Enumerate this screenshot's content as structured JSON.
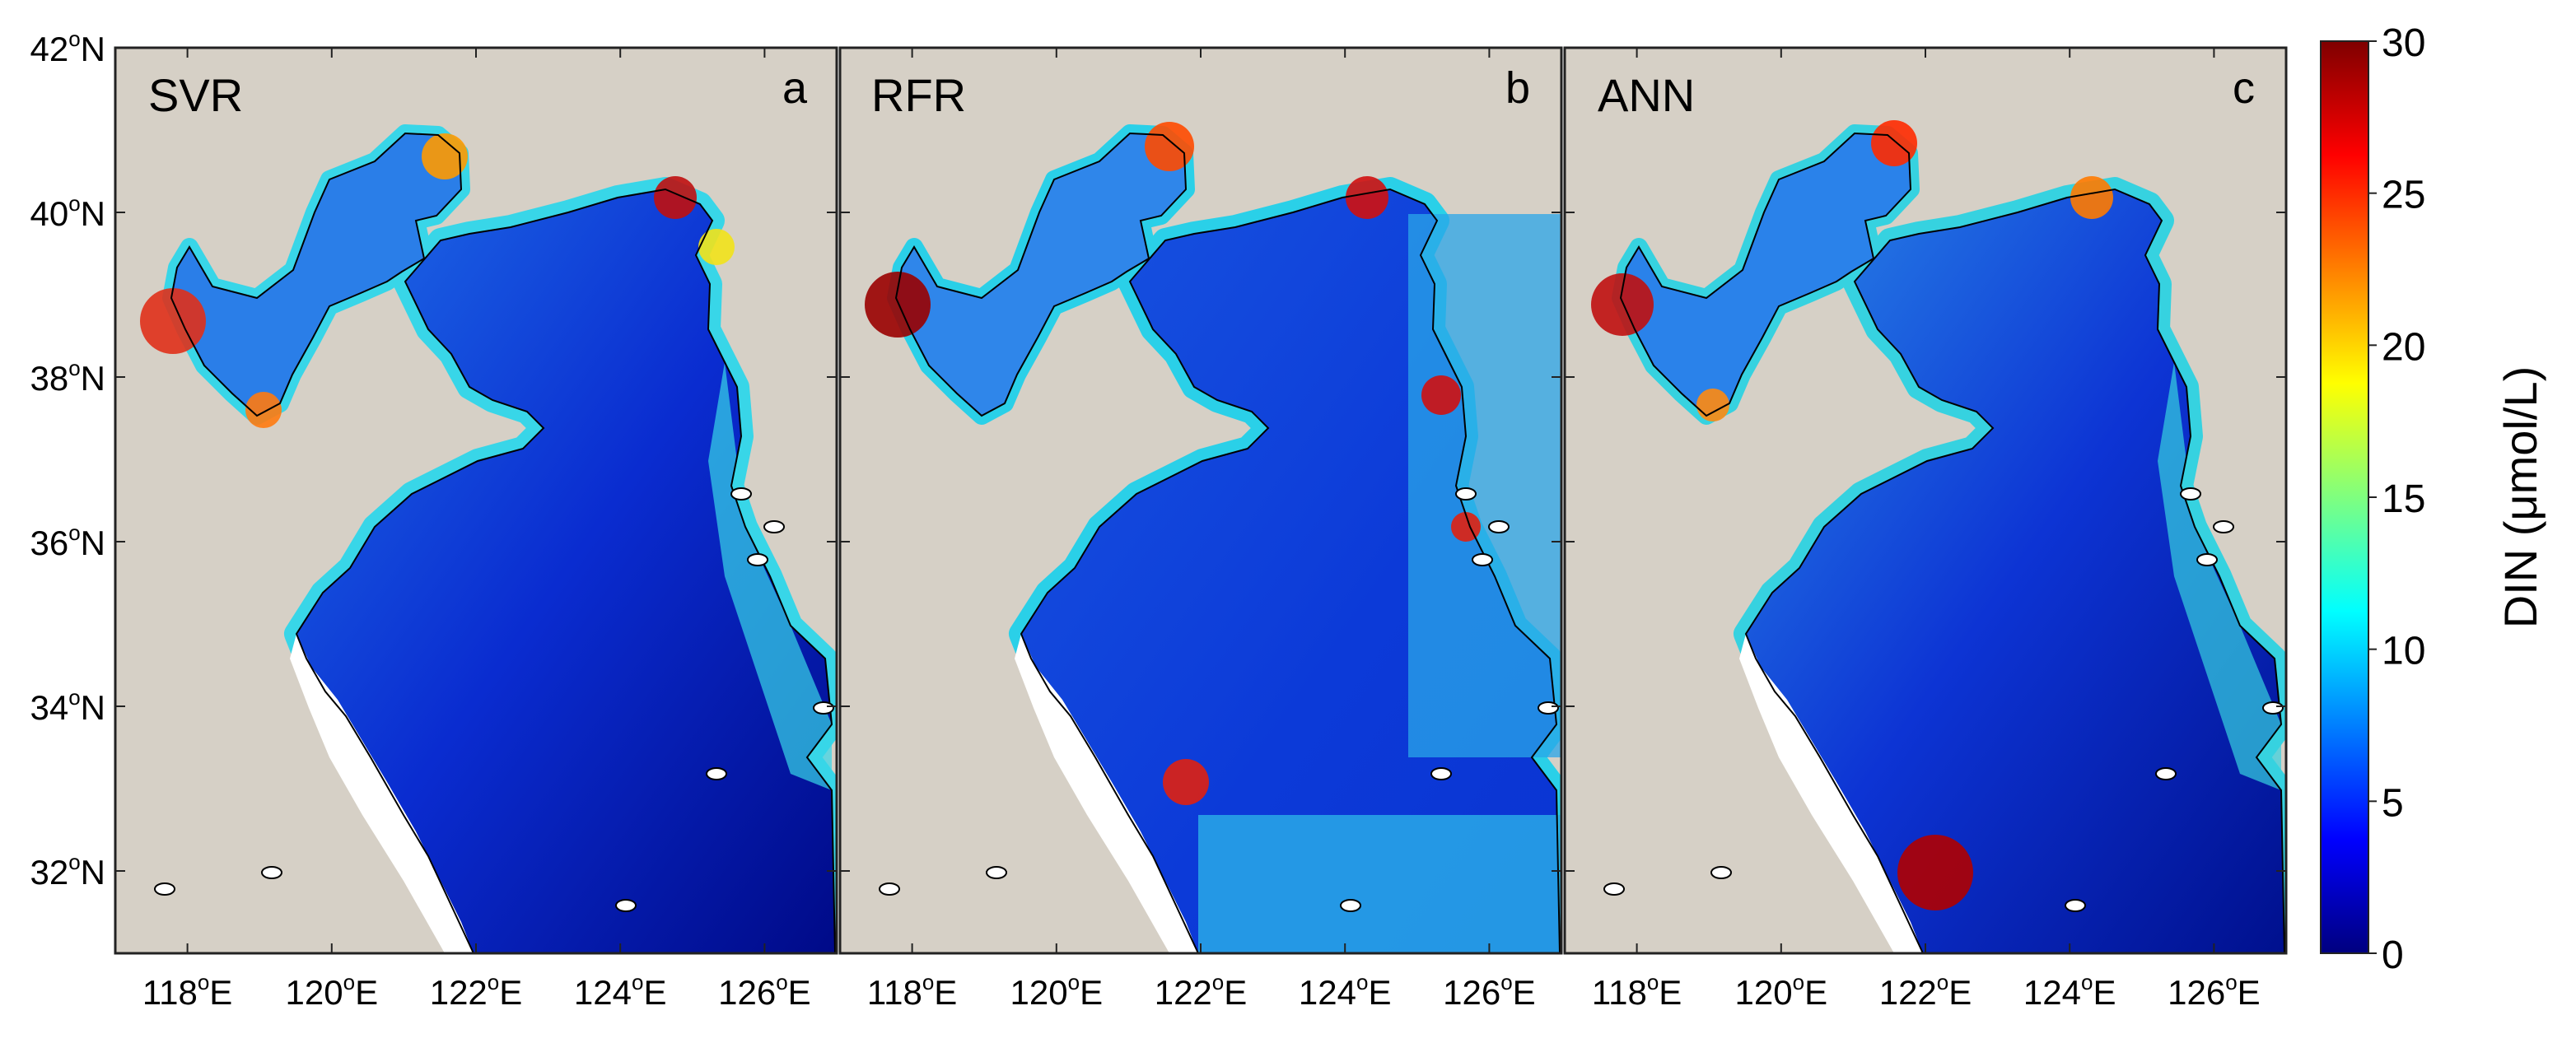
{
  "panels": [
    {
      "title": "SVR",
      "letter": "a"
    },
    {
      "title": "RFR",
      "letter": "b"
    },
    {
      "title": "ANN",
      "letter": "c"
    }
  ],
  "lat_ticks": [
    {
      "deg": "42",
      "suffix": "N",
      "value": 42
    },
    {
      "deg": "40",
      "suffix": "N",
      "value": 40
    },
    {
      "deg": "38",
      "suffix": "N",
      "value": 38
    },
    {
      "deg": "36",
      "suffix": "N",
      "value": 36
    },
    {
      "deg": "34",
      "suffix": "N",
      "value": 34
    },
    {
      "deg": "32",
      "suffix": "N",
      "value": 32
    }
  ],
  "lon_ticks": [
    {
      "deg": "118",
      "suffix": "E",
      "value": 118
    },
    {
      "deg": "120",
      "suffix": "E",
      "value": 120
    },
    {
      "deg": "122",
      "suffix": "E",
      "value": 122
    },
    {
      "deg": "124",
      "suffix": "E",
      "value": 124
    },
    {
      "deg": "126",
      "suffix": "E",
      "value": 126
    }
  ],
  "colorbar": {
    "label": "DIN (μmol/L)",
    "ticks": [
      "0",
      "5",
      "10",
      "15",
      "20",
      "25",
      "30"
    ],
    "min": 0,
    "max": 30,
    "colormap": "jet"
  },
  "map_extent": {
    "lon_min": 117,
    "lon_max": 127,
    "lat_min": 31,
    "lat_max": 42
  },
  "colors": {
    "land": "#d6d0c6",
    "coast": "#000000",
    "nodata": "#ffffff"
  }
}
